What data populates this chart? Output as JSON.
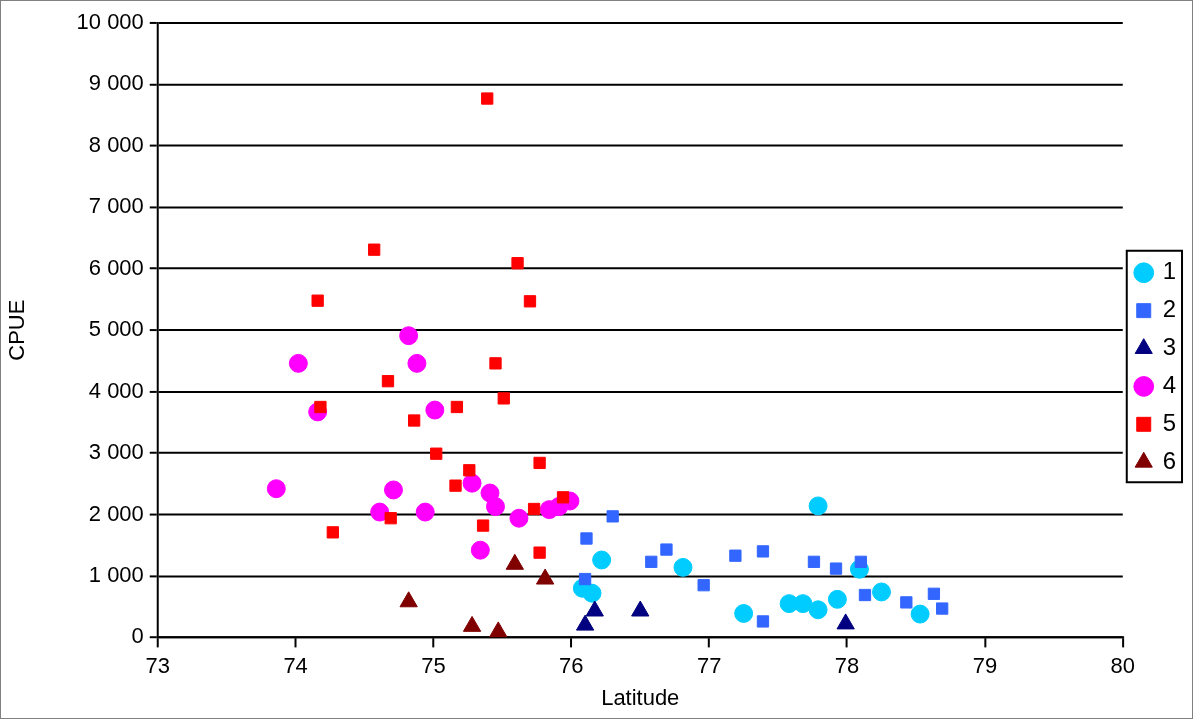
{
  "chart_data": {
    "type": "scatter",
    "xlabel": "Latitude",
    "ylabel": "CPUE",
    "xlim": [
      73,
      80
    ],
    "xticks": [
      73,
      74,
      75,
      76,
      77,
      78,
      79,
      80
    ],
    "ylim": [
      0,
      10000
    ],
    "yticks": [
      {
        "value": 0,
        "label": "0"
      },
      {
        "value": 1000,
        "label": "1 000"
      },
      {
        "value": 2000,
        "label": "2 000"
      },
      {
        "value": 3000,
        "label": "3 000"
      },
      {
        "value": 4000,
        "label": "4 000"
      },
      {
        "value": 5000,
        "label": "5 000"
      },
      {
        "value": 6000,
        "label": "6 000"
      },
      {
        "value": 7000,
        "label": "7 000"
      },
      {
        "value": 8000,
        "label": "8 000"
      },
      {
        "value": 9000,
        "label": "9 000"
      },
      {
        "value": 10000,
        "label": "10 000"
      }
    ],
    "grid": "y",
    "legend": "right",
    "series": [
      {
        "name": "1",
        "color": "#00ccff",
        "marker": "circle",
        "x": [
          76.08,
          76.15,
          76.22,
          76.81,
          77.25,
          77.58,
          77.68,
          77.79,
          77.79,
          77.93,
          78.09,
          78.25,
          78.53
        ],
        "values": [
          800,
          720,
          1260,
          1140,
          390,
          550,
          550,
          450,
          2140,
          620,
          1110,
          740,
          380
        ]
      },
      {
        "name": "2",
        "color": "#3366ff",
        "marker": "square",
        "x": [
          76.3,
          76.11,
          76.1,
          76.58,
          76.69,
          76.96,
          77.19,
          77.39,
          77.39,
          77.76,
          77.92,
          78.1,
          78.13,
          78.43,
          78.63,
          78.69
        ],
        "values": [
          1970,
          1610,
          950,
          1230,
          1430,
          850,
          1330,
          1400,
          260,
          1230,
          1120,
          1230,
          690,
          570,
          710,
          470
        ]
      },
      {
        "name": "3",
        "color": "#000080",
        "marker": "triangle",
        "x": [
          76.1,
          76.17,
          76.5,
          77.99
        ],
        "values": [
          200,
          430,
          430,
          220
        ]
      },
      {
        "name": "4",
        "color": "#ff00ff",
        "marker": "circle",
        "x": [
          74.82,
          74.02,
          74.88,
          74.16,
          75.01,
          73.86,
          74.71,
          74.61,
          74.94,
          75.28,
          75.41,
          75.45,
          75.34,
          75.62,
          75.84,
          75.91,
          75.99
        ],
        "values": [
          4910,
          4460,
          4460,
          3670,
          3700,
          2420,
          2400,
          2040,
          2040,
          2510,
          2350,
          2130,
          1420,
          1940,
          2080,
          2130,
          2220
        ]
      },
      {
        "name": "5",
        "color": "#ff0000",
        "marker": "square",
        "x": [
          75.39,
          74.57,
          75.61,
          74.16,
          75.7,
          75.45,
          74.67,
          75.51,
          74.18,
          75.17,
          74.86,
          75.02,
          75.77,
          75.26,
          75.16,
          75.94,
          75.73,
          74.69,
          75.36,
          74.27,
          75.77
        ],
        "values": [
          8770,
          6310,
          6090,
          5480,
          5470,
          4460,
          4170,
          3890,
          3750,
          3750,
          3530,
          2990,
          2840,
          2720,
          2470,
          2280,
          2090,
          1940,
          1820,
          1710,
          1380
        ]
      },
      {
        "name": "6",
        "color": "#800000",
        "marker": "triangle",
        "x": [
          74.82,
          75.59,
          75.81,
          75.28,
          75.47
        ],
        "values": [
          580,
          1190,
          950,
          180,
          90
        ]
      }
    ]
  }
}
